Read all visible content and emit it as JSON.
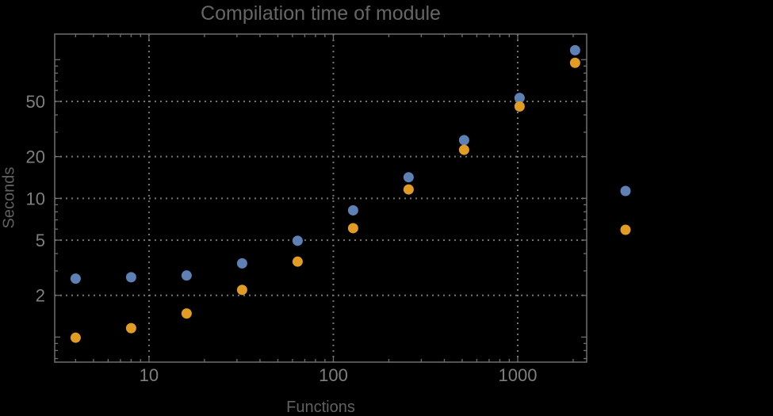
{
  "chart_data": {
    "type": "scatter",
    "title": "Compilation time of module",
    "xlabel": "Functions",
    "ylabel": "Seconds",
    "x_scale": "log",
    "y_scale": "log",
    "x_range": [
      3.08,
      2367
    ],
    "y_range": [
      0.66,
      153
    ],
    "grid": "dotted",
    "x_gridlines": [
      10,
      100,
      1000
    ],
    "y_gridlines": [
      2,
      5,
      10,
      20,
      50
    ],
    "x_tick_labels": [
      "10",
      "100",
      "1000"
    ],
    "y_tick_labels": [
      "2",
      "5",
      "10",
      "20",
      "50"
    ],
    "x": [
      4,
      8,
      16,
      32,
      64,
      128,
      256,
      512,
      1024,
      2048
    ],
    "series": [
      {
        "name": "blue",
        "color": "#5E81B5",
        "values": [
          2.64,
          2.7,
          2.78,
          3.4,
          4.95,
          8.2,
          14.2,
          26.3,
          53,
          117
        ]
      },
      {
        "name": "orange",
        "color": "#E19C24",
        "values": [
          0.99,
          1.16,
          1.48,
          2.19,
          3.5,
          6.1,
          11.6,
          22.4,
          46,
          95
        ]
      }
    ],
    "legend": {
      "position": "right-of-plot",
      "labels_visible": false,
      "entries": [
        {
          "series": "blue",
          "color": "#5E81B5"
        },
        {
          "series": "orange",
          "color": "#E19C24"
        }
      ]
    }
  },
  "colors": {
    "background": "#000000",
    "frame": "#6f6f6f",
    "grid": "#757575",
    "title_text": "#666666",
    "axis_label_text": "#616161",
    "tick_label_text": "#7f7f7f"
  }
}
